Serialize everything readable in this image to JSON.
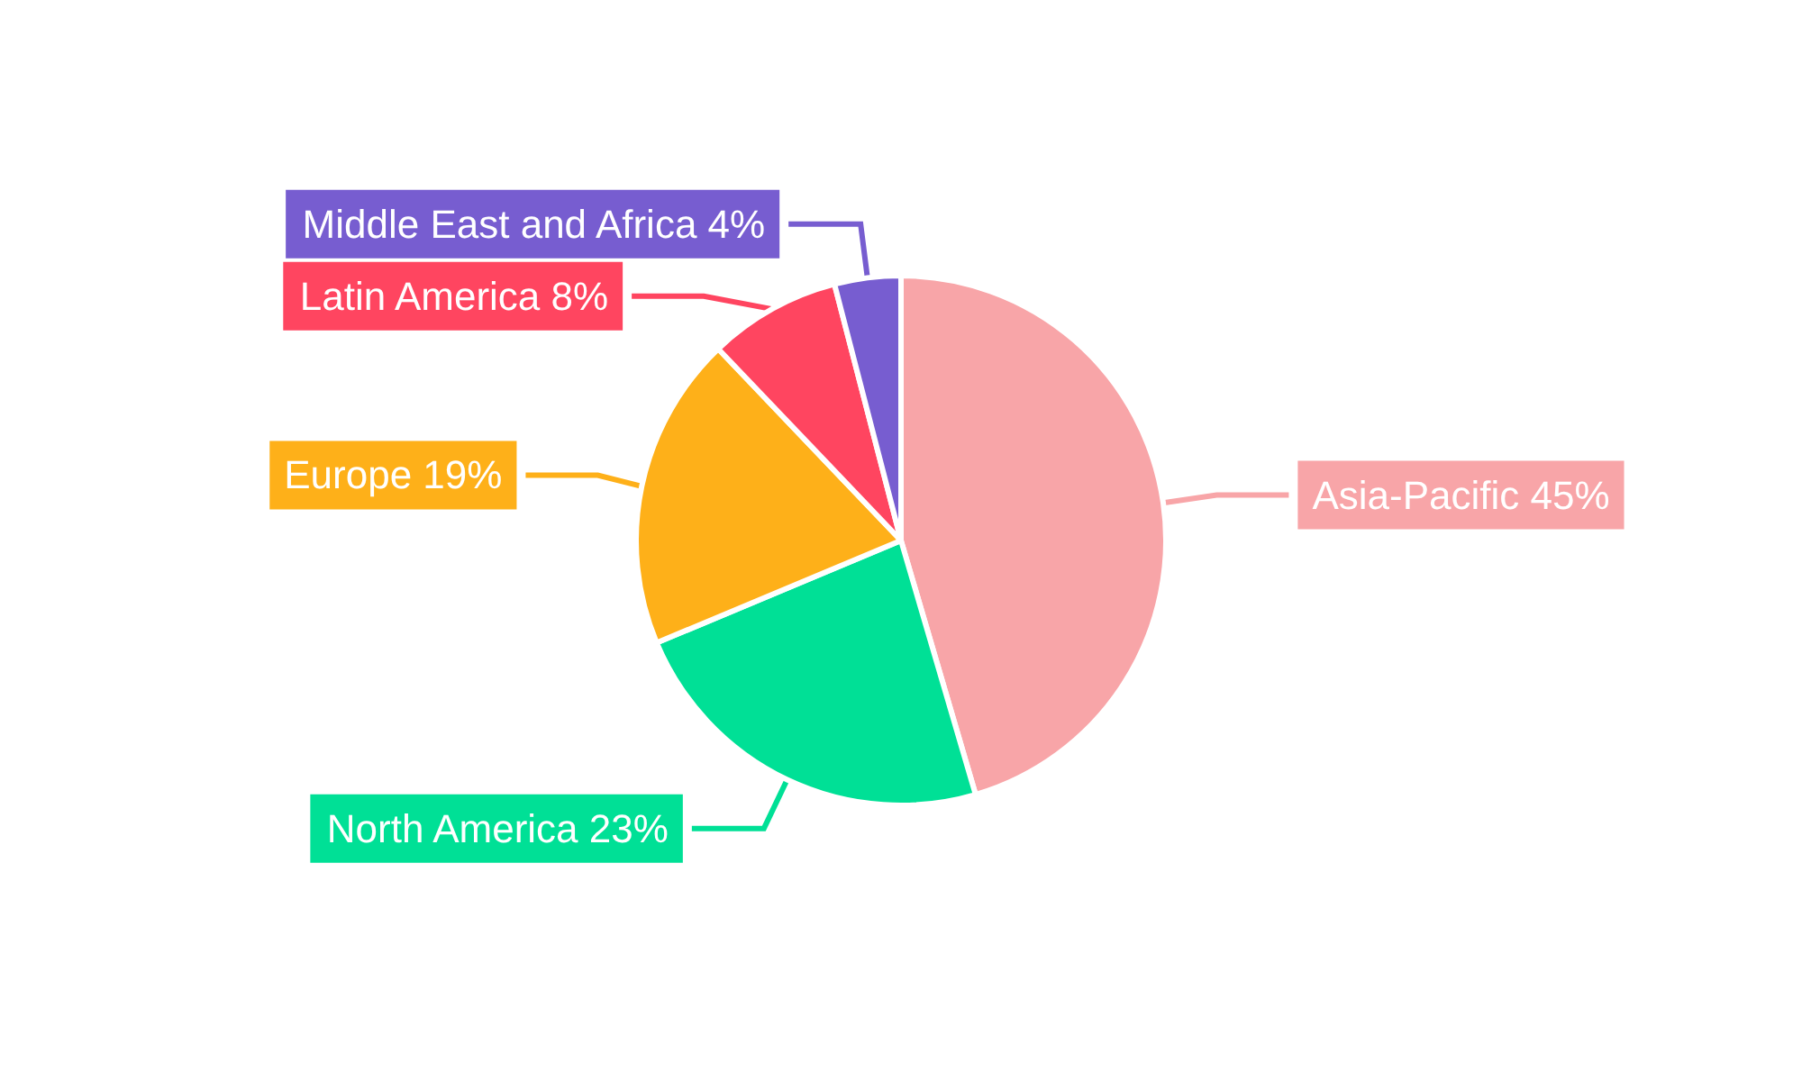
{
  "chart_data": {
    "type": "pie",
    "categories": [
      "Asia-Pacific",
      "North America",
      "Europe",
      "Latin America",
      "Middle East and Africa"
    ],
    "values": [
      45,
      23,
      19,
      8,
      4
    ],
    "value_labels": [
      "45%",
      "23%",
      "19%",
      "8%",
      "4%"
    ],
    "colors": [
      "#f8a5a8",
      "#00e096",
      "#feb019",
      "#ff4560",
      "#775dd0"
    ],
    "legend": false
  }
}
